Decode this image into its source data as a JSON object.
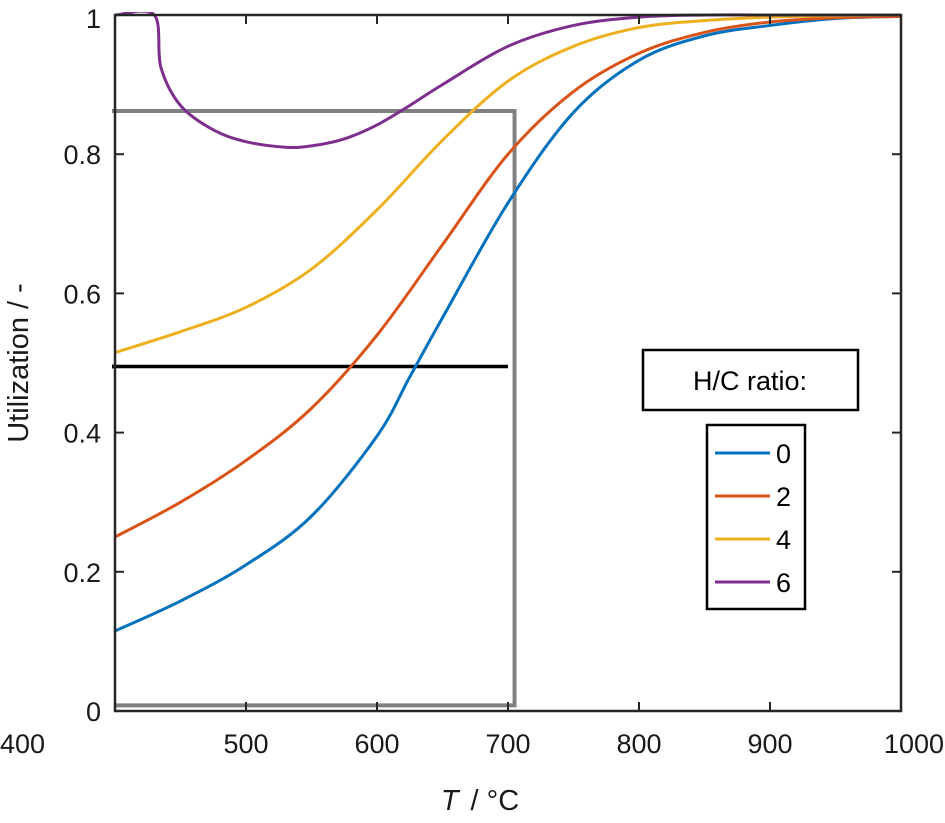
{
  "chart_data": {
    "type": "line",
    "xlabel_var": "T",
    "xlabel_unit": "/ °C",
    "ylabel": "Utilization / -",
    "xlim": [
      400,
      1000
    ],
    "ylim": [
      0,
      1
    ],
    "xticks": [
      400,
      500,
      600,
      700,
      800,
      900,
      1000
    ],
    "yticks": [
      0,
      0.2,
      0.4,
      0.6,
      0.8,
      1
    ],
    "ytick_labels": [
      "0",
      "0.2",
      "0.4",
      "0.6",
      "0.8",
      "1"
    ],
    "grid": false,
    "legend": {
      "title": "H/C ratio:",
      "placement": "right",
      "entries": [
        "0",
        "2",
        "4",
        "6"
      ]
    },
    "series": [
      {
        "name": "0",
        "color": "#0072BD",
        "x": [
          400,
          450,
          500,
          550,
          600,
          625,
          650,
          700,
          750,
          800,
          850,
          900,
          950,
          1000
        ],
        "y": [
          0.115,
          0.158,
          0.21,
          0.28,
          0.395,
          0.48,
          0.565,
          0.73,
          0.86,
          0.935,
          0.97,
          0.985,
          0.995,
          0.998
        ]
      },
      {
        "name": "2",
        "color": "#D95319",
        "x": [
          400,
          450,
          500,
          550,
          600,
          650,
          700,
          750,
          800,
          850,
          900,
          950,
          1000
        ],
        "y": [
          0.25,
          0.3,
          0.36,
          0.435,
          0.54,
          0.67,
          0.8,
          0.89,
          0.945,
          0.975,
          0.99,
          0.996,
          0.998
        ]
      },
      {
        "name": "4",
        "color": "#EDB120",
        "x": [
          400,
          450,
          500,
          550,
          600,
          650,
          700,
          750,
          800,
          850,
          900,
          950,
          1000
        ],
        "y": [
          0.515,
          0.545,
          0.58,
          0.635,
          0.72,
          0.82,
          0.905,
          0.955,
          0.982,
          0.992,
          0.997,
          0.999,
          1.0
        ]
      },
      {
        "name": "6",
        "color": "#7E2F8E",
        "x": [
          400,
          430,
          435,
          450,
          475,
          500,
          530,
          550,
          575,
          600,
          625,
          650,
          700,
          750,
          800,
          850,
          900,
          1000
        ],
        "y": [
          1.0,
          1.0,
          0.925,
          0.87,
          0.835,
          0.818,
          0.81,
          0.812,
          0.822,
          0.842,
          0.87,
          0.9,
          0.955,
          0.985,
          0.997,
          1.0,
          1.0,
          1.0
        ]
      }
    ],
    "annotations": [
      {
        "name": "gray-step-line",
        "color": "#808080",
        "x": [
          400,
          700,
          705,
          705,
          400
        ],
        "y": [
          0.008,
          0.008,
          0.008,
          0.862,
          0.862
        ],
        "arrow_end": true
      },
      {
        "name": "black-arrow",
        "color": "#000000",
        "x": [
          700,
          400
        ],
        "y": [
          0.495,
          0.495
        ],
        "arrow_end": true
      }
    ]
  }
}
